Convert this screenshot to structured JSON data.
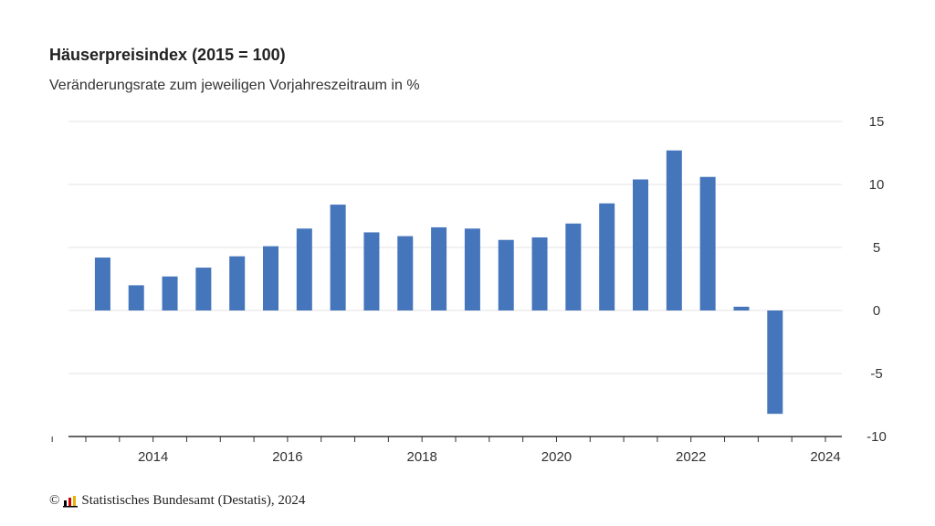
{
  "title": "Häuserpreisindex (2015 = 100)",
  "subtitle": "Veränderungsrate zum jeweiligen Vorjahreszeitraum in %",
  "source": {
    "copyright": "©",
    "text": "Statistisches Bundesamt (Destatis), 2024",
    "logo_icon": "destatis-logo-icon",
    "logo_colors": [
      "#000000",
      "#d00000",
      "#e8b400"
    ]
  },
  "chart_data": {
    "type": "bar",
    "title": "Häuserpreisindex (2015 = 100)",
    "subtitle": "Veränderungsrate zum jeweiligen Vorjahreszeitraum in %",
    "color": "#4575bb",
    "grid": true,
    "y_axis_side": "right",
    "ylim": [
      -10,
      15
    ],
    "y_ticks": [
      15,
      10,
      5,
      0,
      -5,
      -10
    ],
    "x_tick_labels": [
      "2014",
      "2016",
      "2018",
      "2020",
      "2022",
      "2024"
    ],
    "series": [
      {
        "x": [
          "2013-H1",
          "2013-H2",
          "2014-H1",
          "2014-H2",
          "2015-H1",
          "2015-H2",
          "2016-H1",
          "2016-H2",
          "2017-H1",
          "2017-H2",
          "2018-H1",
          "2018-H2",
          "2019-H1",
          "2019-H2",
          "2020-H1",
          "2020-H2",
          "2021-H1",
          "2021-H2",
          "2022-H1",
          "2022-H2",
          "2023-H1"
        ],
        "values": [
          4.2,
          2.0,
          2.7,
          3.4,
          4.3,
          5.1,
          6.5,
          8.4,
          6.2,
          5.9,
          6.6,
          6.5,
          5.6,
          5.8,
          6.9,
          8.5,
          10.4,
          12.7,
          10.6,
          0.3,
          -8.2
        ]
      }
    ]
  }
}
